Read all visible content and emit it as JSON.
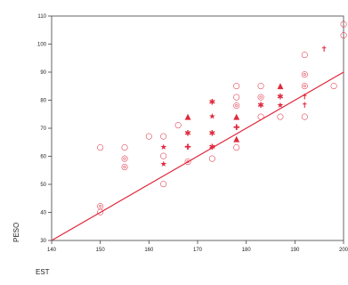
{
  "chart_data": {
    "type": "scatter",
    "xlabel": "EST",
    "ylabel": "PESO",
    "xlim": [
      140,
      200
    ],
    "ylim": [
      30,
      110
    ],
    "x_ticks": [
      140,
      150,
      160,
      170,
      180,
      190,
      200
    ],
    "y_ticks": [
      30,
      40,
      50,
      60,
      70,
      80,
      90,
      100,
      110
    ],
    "x_tick_labels": [
      "140",
      "150",
      "160",
      "170",
      "180",
      "190",
      "200"
    ],
    "y_tick_labels": [
      "30",
      "40",
      "50",
      "60",
      "70",
      "80",
      "90",
      "100",
      "110"
    ],
    "grid": false,
    "color": "#e0283c",
    "marker_symbols": {
      "circle": "○",
      "ring": "◎",
      "triangle": "▲",
      "star": "★",
      "asterisk": "✱",
      "plus": "✚",
      "dagger": "✝"
    },
    "points": [
      {
        "x": 150,
        "y": 63,
        "m": "circle"
      },
      {
        "x": 150,
        "y": 42,
        "m": "ring"
      },
      {
        "x": 150,
        "y": 40,
        "m": "circle"
      },
      {
        "x": 155,
        "y": 63,
        "m": "circle"
      },
      {
        "x": 155,
        "y": 59,
        "m": "ring"
      },
      {
        "x": 155,
        "y": 56,
        "m": "ring"
      },
      {
        "x": 160,
        "y": 67,
        "m": "circle"
      },
      {
        "x": 163,
        "y": 67,
        "m": "circle"
      },
      {
        "x": 163,
        "y": 63,
        "m": "star"
      },
      {
        "x": 163,
        "y": 60,
        "m": "circle"
      },
      {
        "x": 163,
        "y": 57,
        "m": "star"
      },
      {
        "x": 163,
        "y": 50,
        "m": "circle"
      },
      {
        "x": 166,
        "y": 71,
        "m": "circle"
      },
      {
        "x": 168,
        "y": 74,
        "m": "triangle"
      },
      {
        "x": 168,
        "y": 68,
        "m": "asterisk"
      },
      {
        "x": 168,
        "y": 63,
        "m": "plus"
      },
      {
        "x": 168,
        "y": 58,
        "m": "ring"
      },
      {
        "x": 173,
        "y": 79,
        "m": "asterisk"
      },
      {
        "x": 173,
        "y": 74,
        "m": "star"
      },
      {
        "x": 173,
        "y": 68,
        "m": "asterisk"
      },
      {
        "x": 173,
        "y": 63,
        "m": "asterisk"
      },
      {
        "x": 173,
        "y": 59,
        "m": "circle"
      },
      {
        "x": 178,
        "y": 85,
        "m": "circle"
      },
      {
        "x": 178,
        "y": 81,
        "m": "circle"
      },
      {
        "x": 178,
        "y": 78,
        "m": "ring"
      },
      {
        "x": 178,
        "y": 74,
        "m": "triangle"
      },
      {
        "x": 178,
        "y": 70,
        "m": "plus"
      },
      {
        "x": 178,
        "y": 66,
        "m": "triangle"
      },
      {
        "x": 178,
        "y": 63,
        "m": "circle"
      },
      {
        "x": 183,
        "y": 85,
        "m": "circle"
      },
      {
        "x": 183,
        "y": 81,
        "m": "ring"
      },
      {
        "x": 183,
        "y": 78,
        "m": "asterisk"
      },
      {
        "x": 183,
        "y": 74,
        "m": "circle"
      },
      {
        "x": 187,
        "y": 85,
        "m": "triangle"
      },
      {
        "x": 187,
        "y": 81,
        "m": "asterisk"
      },
      {
        "x": 187,
        "y": 78,
        "m": "star"
      },
      {
        "x": 187,
        "y": 74,
        "m": "circle"
      },
      {
        "x": 192,
        "y": 96,
        "m": "circle"
      },
      {
        "x": 192,
        "y": 89,
        "m": "ring"
      },
      {
        "x": 192,
        "y": 85,
        "m": "ring"
      },
      {
        "x": 192,
        "y": 81,
        "m": "dagger"
      },
      {
        "x": 192,
        "y": 78,
        "m": "dagger"
      },
      {
        "x": 192,
        "y": 74,
        "m": "circle"
      },
      {
        "x": 196,
        "y": 98,
        "m": "dagger"
      },
      {
        "x": 198,
        "y": 85,
        "m": "circle"
      },
      {
        "x": 200,
        "y": 107,
        "m": "circle"
      },
      {
        "x": 200,
        "y": 103,
        "m": "circle"
      }
    ],
    "fit_line": {
      "x1": 140,
      "y1": 30,
      "x2": 210,
      "y2": 100
    }
  }
}
